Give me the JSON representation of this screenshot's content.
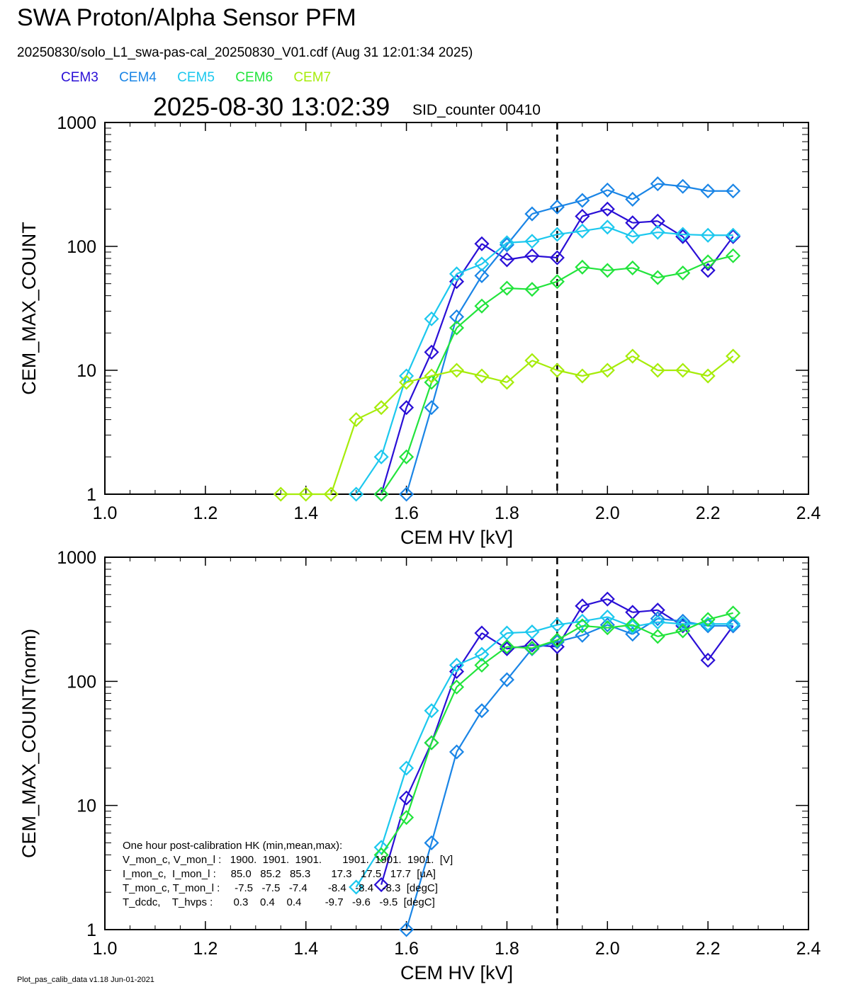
{
  "header": {
    "title": "SWA Proton/Alpha Sensor PFM",
    "file_line": "20250830/solo_L1_swa-pas-cal_20250830_V01.cdf  (Aug 31 12:01:34 2025)",
    "timestamp": "2025-08-30 13:02:39",
    "sid_counter": "SID_counter 00410"
  },
  "footer": {
    "note": "Plot_pas_calib_data v1.18 Jun-01-2021"
  },
  "series_colors": {
    "CEM3": "#2a0fd6",
    "CEM4": "#1a85e6",
    "CEM5": "#1cc8ee",
    "CEM6": "#22e43c",
    "CEM7": "#a6ec0a"
  },
  "hk_box": {
    "lines": [
      "One hour post-calibration HK (min,mean,max):",
      "V_mon_c, V_mon_l :   1900.  1901.  1901.       1901.  1901.  1901.  [V]",
      "I_mon_c,  I_mon_l :     85.0   85.2   85.3       17.3   17.5   17.7  [uA]",
      "T_mon_c, T_mon_l :     -7.5   -7.5   -7.4       -8.4   -8.4   -8.3  [degC]",
      "T_dcdc,    T_hvps :       0.3    0.4    0.4        -9.7   -9.6   -9.5  [degC]"
    ]
  },
  "chart_data": [
    {
      "type": "line",
      "title": "",
      "xlabel": "CEM HV [kV]",
      "ylabel": "CEM_MAX_COUNT",
      "xlim": [
        1.0,
        2.4
      ],
      "ylim": [
        1,
        1000
      ],
      "yscale": "log",
      "xticks": [
        "1.0",
        "1.2",
        "1.4",
        "1.6",
        "1.8",
        "2.0",
        "2.2",
        "2.4"
      ],
      "yticks": [
        "1",
        "10",
        "100",
        "1000"
      ],
      "reference_line_x": 1.9,
      "x": [
        1.35,
        1.4,
        1.45,
        1.5,
        1.55,
        1.6,
        1.65,
        1.7,
        1.75,
        1.8,
        1.85,
        1.9,
        1.95,
        2.0,
        2.05,
        2.1,
        2.15,
        2.2,
        2.25
      ],
      "series": [
        {
          "name": "CEM3",
          "values": [
            null,
            null,
            null,
            null,
            1,
            5,
            14,
            52,
            105,
            78,
            84,
            81,
            175,
            200,
            155,
            160,
            120,
            64,
            120
          ]
        },
        {
          "name": "CEM4",
          "values": [
            null,
            null,
            null,
            null,
            null,
            1,
            5,
            27,
            58,
            103,
            183,
            208,
            235,
            285,
            240,
            320,
            305,
            280,
            280
          ]
        },
        {
          "name": "CEM5",
          "values": [
            null,
            null,
            null,
            1,
            2,
            9,
            26,
            60,
            72,
            107,
            110,
            125,
            133,
            143,
            120,
            130,
            125,
            123,
            123
          ]
        },
        {
          "name": "CEM6",
          "values": [
            null,
            null,
            null,
            null,
            1,
            2,
            8,
            22,
            33,
            46,
            45,
            52,
            68,
            64,
            67,
            56,
            61,
            75,
            84
          ]
        },
        {
          "name": "CEM7",
          "values": [
            1,
            1,
            1,
            4,
            5,
            8,
            9,
            10,
            9,
            8,
            12,
            10,
            9,
            10,
            13,
            10,
            10,
            9,
            13
          ]
        }
      ]
    },
    {
      "type": "line",
      "title": "",
      "xlabel": "CEM HV [kV]",
      "ylabel": "CEM_MAX_COUNT(norm)",
      "xlim": [
        1.0,
        2.4
      ],
      "ylim": [
        1,
        1000
      ],
      "yscale": "log",
      "xticks": [
        "1.0",
        "1.2",
        "1.4",
        "1.6",
        "1.8",
        "2.0",
        "2.2",
        "2.4"
      ],
      "yticks": [
        "1",
        "10",
        "100",
        "1000"
      ],
      "reference_line_x": 1.9,
      "x": [
        1.35,
        1.4,
        1.45,
        1.5,
        1.55,
        1.6,
        1.65,
        1.7,
        1.75,
        1.8,
        1.85,
        1.9,
        1.95,
        2.0,
        2.05,
        2.1,
        2.15,
        2.2,
        2.25
      ],
      "series": [
        {
          "name": "CEM3",
          "values": [
            null,
            null,
            null,
            null,
            2.3,
            11.5,
            32,
            120,
            245,
            183,
            196,
            190,
            405,
            460,
            360,
            375,
            280,
            148,
            280
          ]
        },
        {
          "name": "CEM4",
          "values": [
            null,
            null,
            null,
            null,
            null,
            1,
            5,
            27,
            58,
            103,
            183,
            208,
            235,
            285,
            240,
            320,
            305,
            280,
            280
          ]
        },
        {
          "name": "CEM5",
          "values": [
            null,
            null,
            null,
            2.2,
            4.6,
            20,
            58,
            135,
            165,
            245,
            250,
            285,
            305,
            330,
            275,
            300,
            290,
            290,
            290
          ]
        },
        {
          "name": "CEM6",
          "values": [
            null,
            null,
            null,
            null,
            4,
            8,
            32,
            90,
            135,
            190,
            185,
            215,
            280,
            270,
            285,
            230,
            255,
            315,
            355
          ]
        }
      ]
    }
  ]
}
